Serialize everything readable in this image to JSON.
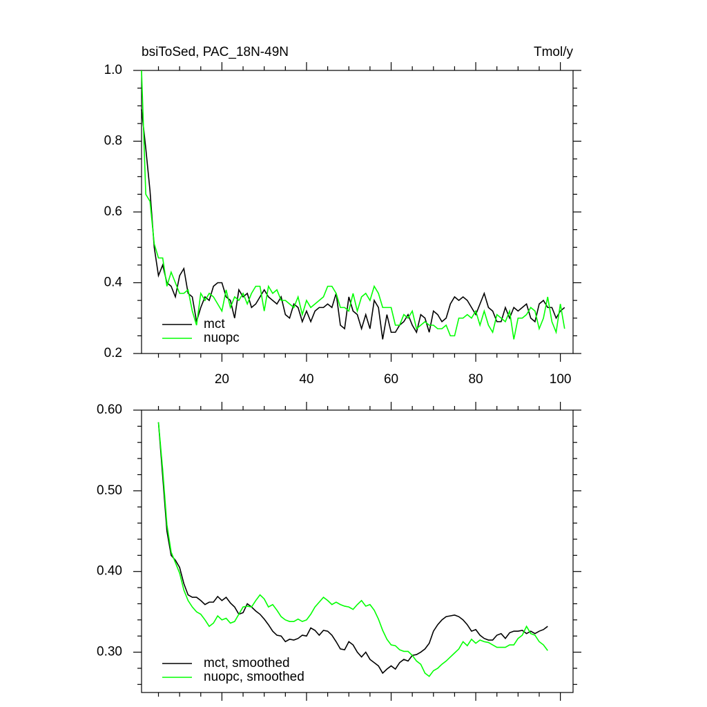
{
  "chart_data": [
    {
      "type": "line",
      "title": "bsiToSed, PAC_18N-49N",
      "units": "Tmol/y",
      "x": [
        1,
        2,
        3,
        4,
        5,
        6,
        7,
        8,
        9,
        10,
        11,
        12,
        13,
        14,
        15,
        16,
        17,
        18,
        19,
        20,
        21,
        22,
        23,
        24,
        25,
        26,
        27,
        28,
        29,
        30,
        31,
        32,
        33,
        34,
        35,
        36,
        37,
        38,
        39,
        40,
        41,
        42,
        43,
        44,
        45,
        46,
        47,
        48,
        49,
        50,
        51,
        52,
        53,
        54,
        55,
        56,
        57,
        58,
        59,
        60,
        61,
        62,
        63,
        64,
        65,
        66,
        67,
        68,
        69,
        70,
        71,
        72,
        73,
        74,
        75,
        76,
        77,
        78,
        79,
        80,
        81,
        82,
        83,
        84,
        85,
        86,
        87,
        88,
        89,
        90,
        91,
        92,
        93,
        94,
        95,
        96,
        97,
        98,
        99,
        100,
        101
      ],
      "series": [
        {
          "name": "mct",
          "color": "#000000",
          "values": [
            0.89,
            0.78,
            0.66,
            0.5,
            0.42,
            0.45,
            0.4,
            0.39,
            0.36,
            0.42,
            0.44,
            0.37,
            0.36,
            0.29,
            0.33,
            0.36,
            0.35,
            0.39,
            0.4,
            0.4,
            0.36,
            0.35,
            0.3,
            0.38,
            0.36,
            0.37,
            0.33,
            0.34,
            0.36,
            0.38,
            0.36,
            0.35,
            0.34,
            0.36,
            0.31,
            0.3,
            0.34,
            0.33,
            0.29,
            0.32,
            0.29,
            0.32,
            0.33,
            0.33,
            0.34,
            0.33,
            0.37,
            0.28,
            0.27,
            0.36,
            0.32,
            0.31,
            0.27,
            0.31,
            0.27,
            0.35,
            0.33,
            0.24,
            0.31,
            0.26,
            0.26,
            0.28,
            0.29,
            0.31,
            0.28,
            0.26,
            0.31,
            0.3,
            0.26,
            0.32,
            0.31,
            0.29,
            0.3,
            0.34,
            0.36,
            0.35,
            0.36,
            0.35,
            0.33,
            0.31,
            0.34,
            0.37,
            0.33,
            0.32,
            0.29,
            0.29,
            0.33,
            0.3,
            0.33,
            0.32,
            0.33,
            0.34,
            0.3,
            0.29,
            0.34,
            0.35,
            0.33,
            0.33,
            0.3,
            0.32,
            0.33
          ]
        },
        {
          "name": "nuopc",
          "color": "#00ff00",
          "values": [
            1.0,
            0.65,
            0.63,
            0.51,
            0.47,
            0.47,
            0.39,
            0.43,
            0.4,
            0.37,
            0.37,
            0.38,
            0.32,
            0.28,
            0.37,
            0.35,
            0.37,
            0.36,
            0.34,
            0.32,
            0.38,
            0.33,
            0.36,
            0.35,
            0.37,
            0.34,
            0.37,
            0.39,
            0.39,
            0.32,
            0.39,
            0.37,
            0.38,
            0.35,
            0.35,
            0.34,
            0.33,
            0.36,
            0.31,
            0.35,
            0.33,
            0.34,
            0.35,
            0.36,
            0.39,
            0.39,
            0.37,
            0.33,
            0.33,
            0.32,
            0.37,
            0.32,
            0.36,
            0.37,
            0.35,
            0.39,
            0.37,
            0.33,
            0.33,
            0.33,
            0.28,
            0.28,
            0.31,
            0.3,
            0.32,
            0.27,
            0.28,
            0.29,
            0.28,
            0.28,
            0.27,
            0.27,
            0.28,
            0.25,
            0.25,
            0.3,
            0.3,
            0.31,
            0.3,
            0.32,
            0.28,
            0.32,
            0.28,
            0.26,
            0.31,
            0.3,
            0.29,
            0.32,
            0.24,
            0.3,
            0.3,
            0.31,
            0.33,
            0.32,
            0.27,
            0.3,
            0.36,
            0.29,
            0.26,
            0.34,
            0.27
          ]
        }
      ],
      "xlim": [
        1,
        103
      ],
      "ylim": [
        0.2,
        1.0
      ],
      "xticks": [
        20,
        40,
        60,
        80,
        100
      ],
      "yticks": [
        0.2,
        0.4,
        0.6,
        0.8,
        {
          "value": 1.0,
          "label": "1.0"
        }
      ],
      "xminorticks": [
        5,
        10,
        15,
        25,
        30,
        35,
        45,
        50,
        55,
        65,
        70,
        75,
        85,
        90,
        95
      ],
      "yminorticks": [
        0.25,
        0.3,
        0.35,
        0.45,
        0.5,
        0.55,
        0.65,
        0.7,
        0.75,
        0.85,
        0.9,
        0.95
      ],
      "legend": "lower left",
      "xtick_labels": true
    },
    {
      "type": "line",
      "x": [
        5,
        6,
        7,
        8,
        9,
        10,
        11,
        12,
        13,
        14,
        15,
        16,
        17,
        18,
        19,
        20,
        21,
        22,
        23,
        24,
        25,
        26,
        27,
        28,
        29,
        30,
        31,
        32,
        33,
        34,
        35,
        36,
        37,
        38,
        39,
        40,
        41,
        42,
        43,
        44,
        45,
        46,
        47,
        48,
        49,
        50,
        51,
        52,
        53,
        54,
        55,
        56,
        57,
        58,
        59,
        60,
        61,
        62,
        63,
        64,
        65,
        66,
        67,
        68,
        69,
        70,
        71,
        72,
        73,
        74,
        75,
        76,
        77,
        78,
        79,
        80,
        81,
        82,
        83,
        84,
        85,
        86,
        87,
        88,
        89,
        90,
        91,
        92,
        93,
        94,
        95,
        96,
        97
      ],
      "series": [
        {
          "name": "mct, smoothed",
          "color": "#000000",
          "values": [
            0.585,
            0.518,
            0.45,
            0.42,
            0.414,
            0.405,
            0.385,
            0.371,
            0.368,
            0.368,
            0.364,
            0.359,
            0.362,
            0.362,
            0.369,
            0.364,
            0.368,
            0.361,
            0.356,
            0.347,
            0.349,
            0.36,
            0.356,
            0.351,
            0.347,
            0.341,
            0.334,
            0.326,
            0.321,
            0.32,
            0.313,
            0.316,
            0.315,
            0.317,
            0.321,
            0.32,
            0.33,
            0.327,
            0.321,
            0.327,
            0.326,
            0.321,
            0.313,
            0.304,
            0.303,
            0.313,
            0.309,
            0.3,
            0.294,
            0.3,
            0.291,
            0.287,
            0.283,
            0.274,
            0.279,
            0.283,
            0.279,
            0.287,
            0.291,
            0.289,
            0.296,
            0.297,
            0.3,
            0.304,
            0.311,
            0.326,
            0.334,
            0.34,
            0.344,
            0.345,
            0.346,
            0.344,
            0.34,
            0.334,
            0.326,
            0.328,
            0.321,
            0.317,
            0.315,
            0.315,
            0.321,
            0.323,
            0.317,
            0.324,
            0.326,
            0.326,
            0.327,
            0.323,
            0.326,
            0.323,
            0.326,
            0.328,
            0.332
          ]
        },
        {
          "name": "nuopc, smoothed",
          "color": "#00ff00",
          "values": [
            0.585,
            0.526,
            0.458,
            0.424,
            0.411,
            0.398,
            0.377,
            0.364,
            0.356,
            0.35,
            0.347,
            0.34,
            0.332,
            0.336,
            0.345,
            0.34,
            0.342,
            0.336,
            0.338,
            0.347,
            0.356,
            0.357,
            0.356,
            0.364,
            0.371,
            0.366,
            0.356,
            0.359,
            0.352,
            0.344,
            0.34,
            0.338,
            0.338,
            0.341,
            0.338,
            0.34,
            0.347,
            0.356,
            0.362,
            0.368,
            0.364,
            0.359,
            0.362,
            0.359,
            0.357,
            0.356,
            0.353,
            0.359,
            0.364,
            0.357,
            0.359,
            0.352,
            0.341,
            0.327,
            0.316,
            0.309,
            0.308,
            0.303,
            0.301,
            0.301,
            0.296,
            0.289,
            0.285,
            0.274,
            0.27,
            0.277,
            0.28,
            0.285,
            0.289,
            0.294,
            0.299,
            0.304,
            0.313,
            0.308,
            0.316,
            0.311,
            0.315,
            0.313,
            0.312,
            0.309,
            0.306,
            0.306,
            0.306,
            0.309,
            0.309,
            0.317,
            0.321,
            0.332,
            0.323,
            0.321,
            0.313,
            0.309,
            0.302
          ]
        }
      ],
      "xlim": [
        1,
        103
      ],
      "ylim": [
        0.25,
        0.6
      ],
      "xticks": [
        20,
        40,
        60,
        80,
        100
      ],
      "yticks": [
        {
          "value": 0.3,
          "label": "0.30"
        },
        {
          "value": 0.4,
          "label": "0.40"
        },
        {
          "value": 0.5,
          "label": "0.50"
        },
        {
          "value": 0.6,
          "label": "0.60"
        }
      ],
      "xminorticks": [
        5,
        10,
        15,
        25,
        30,
        35,
        45,
        50,
        55,
        65,
        70,
        75,
        85,
        90,
        95
      ],
      "yminorticks": [
        0.26,
        0.28,
        0.32,
        0.34,
        0.36,
        0.38,
        0.42,
        0.44,
        0.46,
        0.48,
        0.52,
        0.54,
        0.56,
        0.58
      ],
      "legend": "lower left",
      "xtick_labels": false
    }
  ]
}
